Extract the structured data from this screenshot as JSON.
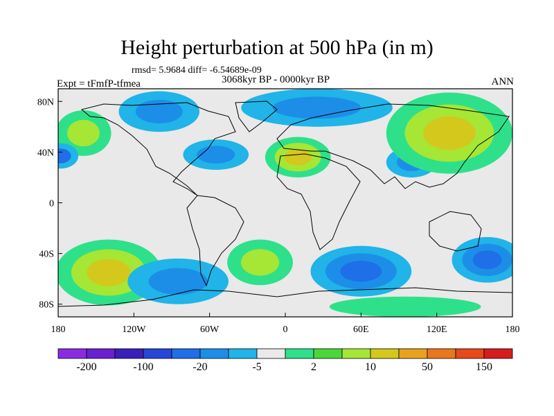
{
  "chart_data": {
    "type": "heatmap",
    "title": "Height perturbation at 500 hPa (in m)",
    "stats_line": "rmsd= 5.9684 diff= -6.54689e-09",
    "period": "3068kyr BP - 0000kyr BP",
    "experiment": "Expt = tFmfP-tfmea",
    "season": "ANN",
    "x_ticks": [
      "180",
      "120W",
      "60W",
      "0",
      "60E",
      "120E",
      "180"
    ],
    "y_ticks": [
      "80N",
      "40N",
      "0",
      "40S",
      "80S"
    ],
    "x_range": [
      -180,
      180
    ],
    "y_range": [
      -90,
      90
    ],
    "colorbar": {
      "colors": [
        "#8a2be2",
        "#6a1fd0",
        "#3b1fb8",
        "#2846d8",
        "#1e6fe8",
        "#1c8ee8",
        "#20b4e8",
        "#e9e9e9",
        "#2ee08a",
        "#4cd63a",
        "#a6e634",
        "#d4c81c",
        "#e8a21e",
        "#e8781e",
        "#e8481c",
        "#d81c1c"
      ],
      "labels": [
        "-200",
        "-100",
        "-20",
        "-5",
        "2",
        "10",
        "50",
        "150"
      ]
    },
    "anomaly_blobs": [
      {
        "lon": -160,
        "lat": 55,
        "rx": 22,
        "ry": 18,
        "levels": [
          "#2ee08a",
          "#a6e634"
        ]
      },
      {
        "lon": -178,
        "lat": 37,
        "rx": 14,
        "ry": 10,
        "levels": [
          "#20b4e8",
          "#1e6fe8"
        ]
      },
      {
        "lon": -100,
        "lat": 72,
        "rx": 32,
        "ry": 16,
        "levels": [
          "#20b4e8",
          "#1c8ee8"
        ]
      },
      {
        "lon": -55,
        "lat": 38,
        "rx": 26,
        "ry": 12,
        "levels": [
          "#20b4e8",
          "#1c8ee8"
        ]
      },
      {
        "lon": 10,
        "lat": 36,
        "rx": 26,
        "ry": 16,
        "levels": [
          "#2ee08a",
          "#a6e634",
          "#d4c81c"
        ]
      },
      {
        "lon": 25,
        "lat": 75,
        "rx": 60,
        "ry": 15,
        "levels": [
          "#20b4e8",
          "#1c8ee8"
        ]
      },
      {
        "lon": 100,
        "lat": 32,
        "rx": 20,
        "ry": 12,
        "levels": [
          "#20b4e8",
          "#1c8ee8"
        ]
      },
      {
        "lon": 130,
        "lat": 55,
        "rx": 50,
        "ry": 32,
        "levels": [
          "#2ee08a",
          "#a6e634",
          "#d4c81c"
        ]
      },
      {
        "lon": 160,
        "lat": -45,
        "rx": 28,
        "ry": 18,
        "levels": [
          "#20b4e8",
          "#1c8ee8",
          "#1e6fe8"
        ]
      },
      {
        "lon": -140,
        "lat": -55,
        "rx": 42,
        "ry": 26,
        "levels": [
          "#2ee08a",
          "#a6e634",
          "#d4c81c"
        ]
      },
      {
        "lon": -85,
        "lat": -62,
        "rx": 40,
        "ry": 18,
        "levels": [
          "#20b4e8",
          "#1c8ee8"
        ]
      },
      {
        "lon": -20,
        "lat": -47,
        "rx": 26,
        "ry": 18,
        "levels": [
          "#2ee08a",
          "#a6e634"
        ]
      },
      {
        "lon": 60,
        "lat": -54,
        "rx": 40,
        "ry": 20,
        "levels": [
          "#20b4e8",
          "#1c8ee8",
          "#1e6fe8"
        ]
      },
      {
        "lon": 95,
        "lat": -82,
        "rx": 60,
        "ry": 8,
        "levels": [
          "#2ee08a"
        ]
      }
    ]
  }
}
